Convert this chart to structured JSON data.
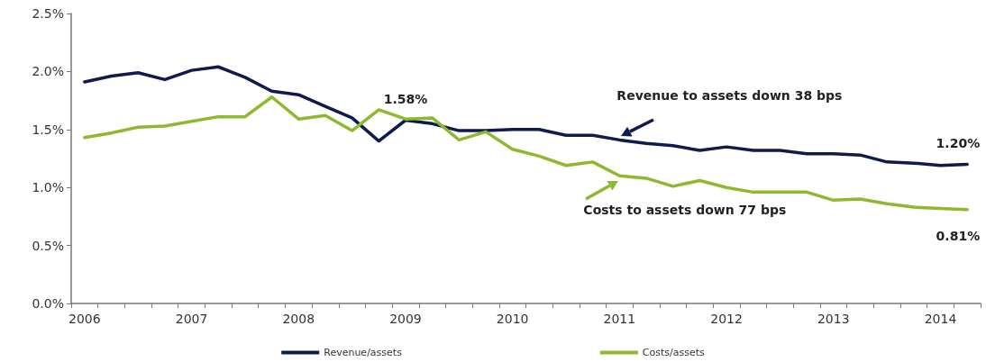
{
  "chart_data": {
    "type": "line",
    "categories": [
      "2006",
      null,
      null,
      null,
      "2007",
      null,
      null,
      null,
      "2008",
      null,
      null,
      null,
      "2009",
      null,
      null,
      null,
      "2010",
      null,
      null,
      null,
      "2011",
      null,
      null,
      null,
      "2012",
      null,
      null,
      null,
      "2013",
      null,
      null,
      null,
      "2014",
      null
    ],
    "series": [
      {
        "name": "Revenue/assets",
        "color": "#0d1b4f",
        "values": [
          1.91,
          1.96,
          1.99,
          1.93,
          2.01,
          2.04,
          1.95,
          1.83,
          1.8,
          1.7,
          1.6,
          1.4,
          1.58,
          1.55,
          1.49,
          1.49,
          1.5,
          1.5,
          1.45,
          1.45,
          1.41,
          1.38,
          1.36,
          1.32,
          1.35,
          1.32,
          1.32,
          1.29,
          1.29,
          1.28,
          1.22,
          1.21,
          1.19,
          1.2
        ],
        "value_labels": [
          null,
          null,
          null,
          null,
          null,
          null,
          null,
          null,
          null,
          null,
          null,
          null,
          "1.58%",
          null,
          null,
          null,
          null,
          null,
          null,
          null,
          null,
          null,
          null,
          null,
          null,
          null,
          null,
          null,
          null,
          null,
          null,
          null,
          null,
          "1.20%"
        ]
      },
      {
        "name": "Costs/assets",
        "color": "#8db92e",
        "values": [
          1.43,
          1.47,
          1.52,
          1.53,
          1.57,
          1.61,
          1.61,
          1.78,
          1.59,
          1.62,
          1.49,
          1.67,
          1.59,
          1.6,
          1.41,
          1.48,
          1.33,
          1.27,
          1.19,
          1.22,
          1.1,
          1.08,
          1.01,
          1.06,
          1.0,
          0.96,
          0.96,
          0.96,
          0.89,
          0.9,
          0.86,
          0.83,
          0.82,
          0.81
        ],
        "value_labels": [
          null,
          null,
          null,
          null,
          null,
          null,
          null,
          null,
          null,
          null,
          null,
          null,
          null,
          null,
          null,
          null,
          null,
          null,
          null,
          null,
          null,
          null,
          null,
          null,
          null,
          null,
          null,
          null,
          null,
          null,
          null,
          null,
          null,
          "0.81%"
        ]
      }
    ],
    "ylim": [
      0,
      2.5
    ],
    "yticks": [
      {
        "value": 0,
        "label": "0.0%"
      },
      {
        "value": 0.5,
        "label": "0.5%"
      },
      {
        "value": 1,
        "label": "1.0%"
      },
      {
        "value": 1.5,
        "label": "1.5%"
      },
      {
        "value": 2,
        "label": "2.0%"
      },
      {
        "value": 2.5,
        "label": "2.5%"
      }
    ],
    "annotations": [
      {
        "text": "Revenue to assets down 38 bps",
        "x": "2011",
        "y": 1.41
      },
      {
        "text": "Costs to assets down 77 bps",
        "x": "2011",
        "y": 1.1
      }
    ],
    "legend": "bottom",
    "grid": false,
    "marker": "none",
    "line_style": "solid"
  }
}
